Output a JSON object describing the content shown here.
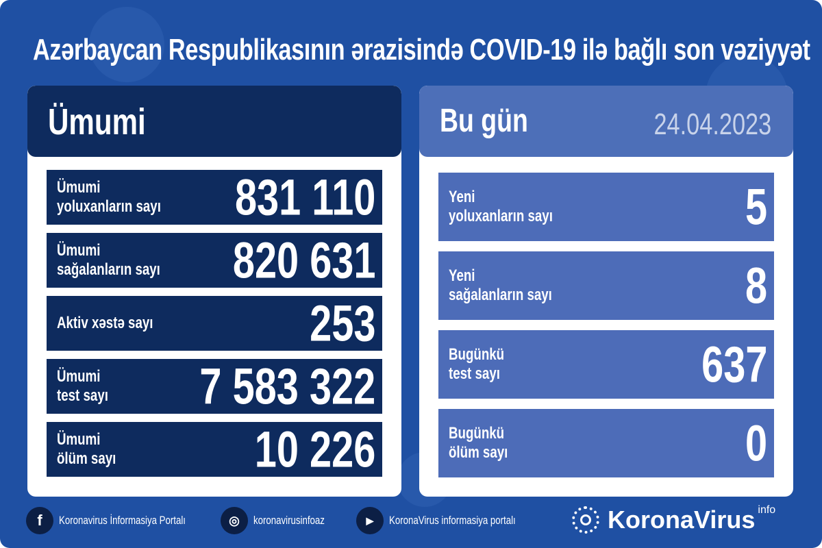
{
  "title": "Azərbaycan Respublikasının ərazisində COVID-19 ilə bağlı son vəziyyət",
  "total": {
    "header": "Ümumi",
    "rows": [
      {
        "label_1": "Ümumi",
        "label_2": "yoluxanların sayı",
        "value": "831 110"
      },
      {
        "label_1": "Ümumi",
        "label_2": "sağalanların sayı",
        "value": "820 631"
      },
      {
        "label_1": "Aktiv xəstə sayı",
        "label_2": "",
        "value": "253"
      },
      {
        "label_1": "Ümumi",
        "label_2": "test sayı",
        "value": "7 583 322"
      },
      {
        "label_1": "Ümumi",
        "label_2": "ölüm sayı",
        "value": "10 226"
      }
    ]
  },
  "today": {
    "header": "Bu gün",
    "date": "24.04.2023",
    "rows": [
      {
        "label_1": "Yeni",
        "label_2": "yoluxanların sayı",
        "value": "5"
      },
      {
        "label_1": "Yeni",
        "label_2": "sağalanların sayı",
        "value": "8"
      },
      {
        "label_1": "Bugünkü",
        "label_2": "test sayı",
        "value": "637"
      },
      {
        "label_1": "Bugünkü",
        "label_2": "ölüm sayı",
        "value": "0"
      }
    ]
  },
  "footer": {
    "facebook": "Koronavirus İnformasiya Portalı",
    "instagram": "koronavirusinfoaz",
    "youtube": "KoronaVirus informasiya portalı",
    "logo": "KoronaVirus",
    "logo_sup": "info"
  },
  "colors": {
    "background": "#1f50a3",
    "dark_panel": "#0e2b5e",
    "light_panel": "#4d6cb8"
  }
}
